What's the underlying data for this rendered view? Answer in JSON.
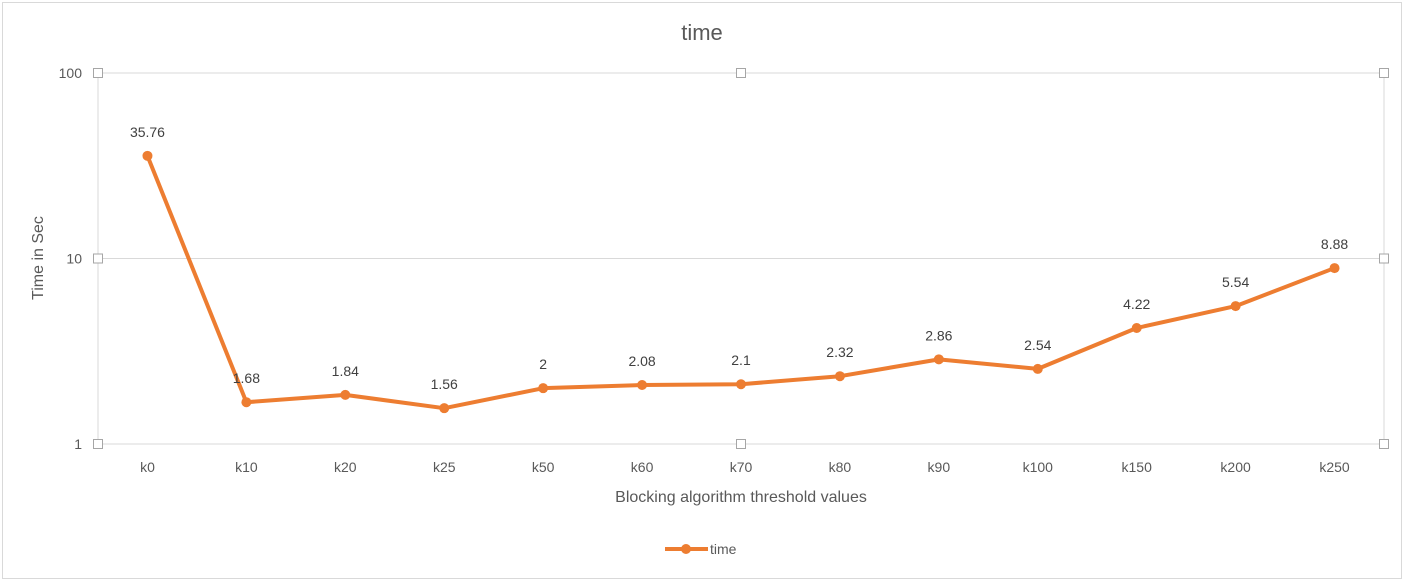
{
  "chart_data": {
    "type": "line",
    "title": "time",
    "xlabel": "Blocking algorithm threshold values",
    "ylabel": "Time in Sec",
    "y_scale": "log",
    "ylim": [
      1,
      100
    ],
    "y_ticks": [
      {
        "value": 1,
        "label": "1"
      },
      {
        "value": 10,
        "label": "10"
      },
      {
        "value": 100,
        "label": "100"
      }
    ],
    "categories": [
      "k0",
      "k10",
      "k20",
      "k25",
      "k50",
      "k60",
      "k70",
      "k80",
      "k90",
      "k100",
      "k150",
      "k200",
      "k250"
    ],
    "series": [
      {
        "name": "time",
        "values": [
          35.76,
          1.68,
          1.84,
          1.56,
          2,
          2.08,
          2.1,
          2.32,
          2.86,
          2.54,
          4.22,
          5.54,
          8.88
        ],
        "data_labels": [
          "35.76",
          "1.68",
          "1.84",
          "1.56",
          "2",
          "2.08",
          "2.1",
          "2.32",
          "2.86",
          "2.54",
          "4.22",
          "5.54",
          "8.88"
        ],
        "color": "#ED7D31"
      }
    ],
    "grid": true,
    "legend": "bottom",
    "colors": {
      "gridline": "#D9D9D9",
      "axis_text": "#595959",
      "data_label_text": "#404040",
      "frame": "#D9D9D9",
      "selection_handle": "#A6A6A6"
    }
  }
}
